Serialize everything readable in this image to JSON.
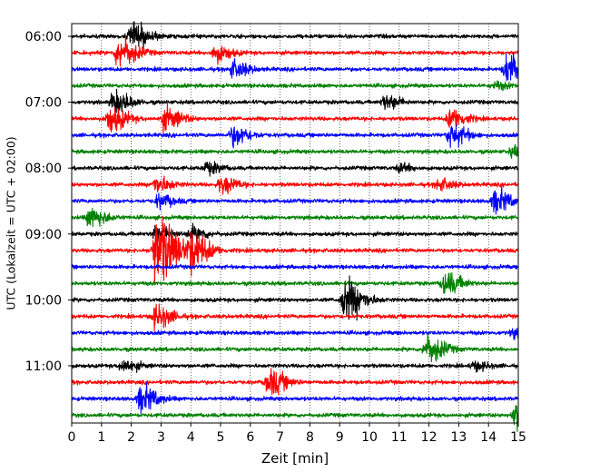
{
  "chart_data": {
    "type": "line",
    "xlabel": "Zeit  [min]",
    "ylabel": "UTC (Lokalzeit = UTC + 02:00)",
    "xlim": [
      0,
      15
    ],
    "x_ticks": [
      0,
      1,
      2,
      3,
      4,
      5,
      6,
      7,
      8,
      9,
      10,
      11,
      12,
      13,
      14,
      15
    ],
    "y_tick_labels": [
      "06:00",
      "07:00",
      "08:00",
      "09:00",
      "10:00",
      "11:00"
    ],
    "y_tick_rows": [
      0,
      4,
      8,
      12,
      16,
      20
    ],
    "grid": "vertical dotted",
    "rows": [
      {
        "start": "06:00",
        "color": "#000000",
        "events": [
          {
            "t": 2.0,
            "amp": 0.9
          }
        ]
      },
      {
        "start": "06:15",
        "color": "#ff0000",
        "events": [
          {
            "t": 1.55,
            "amp": 1.1
          },
          {
            "t": 4.8,
            "amp": 0.6
          }
        ]
      },
      {
        "start": "06:30",
        "color": "#0000ff",
        "events": [
          {
            "t": 5.4,
            "amp": 0.6
          },
          {
            "t": 14.6,
            "amp": 1.1
          }
        ]
      },
      {
        "start": "06:45",
        "color": "#008000",
        "events": [
          {
            "t": 14.2,
            "amp": 0.25
          }
        ]
      },
      {
        "start": "07:00",
        "color": "#000000",
        "events": [
          {
            "t": 1.4,
            "amp": 0.8
          },
          {
            "t": 10.5,
            "amp": 0.5
          }
        ]
      },
      {
        "start": "07:15",
        "color": "#ff0000",
        "events": [
          {
            "t": 1.25,
            "amp": 0.9
          },
          {
            "t": 3.1,
            "amp": 0.8
          },
          {
            "t": 12.7,
            "amp": 0.7
          }
        ]
      },
      {
        "start": "07:30",
        "color": "#0000ff",
        "events": [
          {
            "t": 5.4,
            "amp": 0.7
          },
          {
            "t": 12.7,
            "amp": 0.8
          }
        ]
      },
      {
        "start": "07:45",
        "color": "#008000",
        "events": [
          {
            "t": 14.8,
            "amp": 0.35
          }
        ]
      },
      {
        "start": "08:00",
        "color": "#000000",
        "events": [
          {
            "t": 4.5,
            "amp": 0.4
          },
          {
            "t": 11.0,
            "amp": 0.25
          }
        ]
      },
      {
        "start": "08:15",
        "color": "#ff0000",
        "events": [
          {
            "t": 2.8,
            "amp": 0.6
          },
          {
            "t": 5.0,
            "amp": 0.6
          },
          {
            "t": 12.3,
            "amp": 0.4
          }
        ]
      },
      {
        "start": "08:30",
        "color": "#0000ff",
        "events": [
          {
            "t": 2.9,
            "amp": 0.45
          },
          {
            "t": 14.2,
            "amp": 0.8
          }
        ]
      },
      {
        "start": "08:45",
        "color": "#008000",
        "events": [
          {
            "t": 0.6,
            "amp": 0.7
          }
        ]
      },
      {
        "start": "09:00",
        "color": "#000000",
        "events": [
          {
            "t": 2.8,
            "amp": 0.6
          },
          {
            "t": 4.0,
            "amp": 0.5
          }
        ]
      },
      {
        "start": "09:15",
        "color": "#ff0000",
        "events": [
          {
            "t": 2.8,
            "amp": 2.4
          },
          {
            "t": 4.0,
            "amp": 1.2
          }
        ]
      },
      {
        "start": "09:30",
        "color": "#0000ff",
        "events": []
      },
      {
        "start": "09:45",
        "color": "#008000",
        "events": [
          {
            "t": 12.5,
            "amp": 0.8
          }
        ]
      },
      {
        "start": "10:00",
        "color": "#000000",
        "events": [
          {
            "t": 9.15,
            "amp": 1.4
          }
        ]
      },
      {
        "start": "10:15",
        "color": "#ff0000",
        "events": [
          {
            "t": 2.8,
            "amp": 0.8
          }
        ]
      },
      {
        "start": "10:30",
        "color": "#0000ff",
        "events": [
          {
            "t": 14.8,
            "amp": 0.3
          }
        ]
      },
      {
        "start": "10:45",
        "color": "#008000",
        "events": [
          {
            "t": 11.9,
            "amp": 1.0
          }
        ]
      },
      {
        "start": "11:00",
        "color": "#000000",
        "events": [
          {
            "t": 1.7,
            "amp": 0.45
          },
          {
            "t": 13.5,
            "amp": 0.3
          }
        ]
      },
      {
        "start": "11:15",
        "color": "#ff0000",
        "events": [
          {
            "t": 6.6,
            "amp": 0.9
          }
        ]
      },
      {
        "start": "11:30",
        "color": "#0000ff",
        "events": [
          {
            "t": 2.3,
            "amp": 0.9
          }
        ]
      },
      {
        "start": "11:45",
        "color": "#008000",
        "events": [
          {
            "t": 14.9,
            "amp": 1.0
          }
        ]
      }
    ]
  }
}
